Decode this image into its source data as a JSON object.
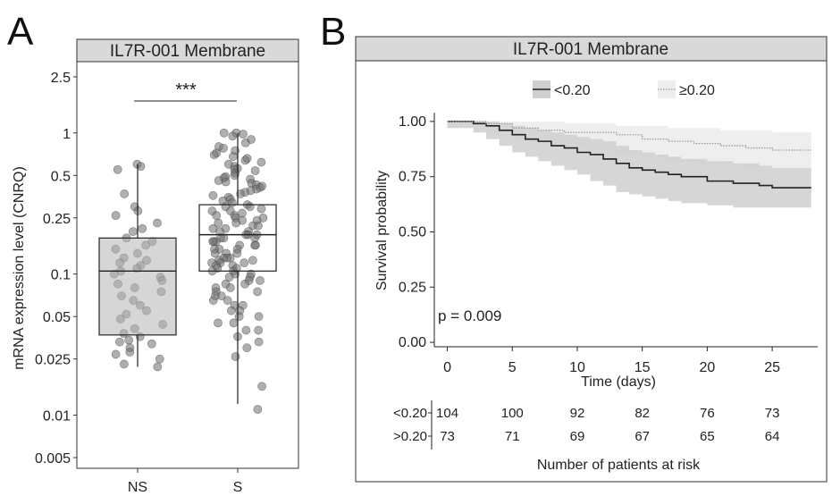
{
  "chart_data": [
    {
      "panel": "A",
      "type": "box",
      "title": "IL7R-001 Membrane",
      "ylabel": "mRNA expression level (CNRQ)",
      "yscale": "log",
      "ylim": [
        0.0042,
        3.2
      ],
      "yticks": [
        {
          "value": 2.5,
          "label": "2.5"
        },
        {
          "value": 1,
          "label": "1"
        },
        {
          "value": 0.5,
          "label": "0.5"
        },
        {
          "value": 0.25,
          "label": "0.25"
        },
        {
          "value": 0.1,
          "label": "0.1"
        },
        {
          "value": 0.05,
          "label": "0.05"
        },
        {
          "value": 0.025,
          "label": "0.025"
        },
        {
          "value": 0.01,
          "label": "0.01"
        },
        {
          "value": 0.005,
          "label": "0.005"
        }
      ],
      "categories": [
        "NS",
        "S"
      ],
      "significance": "***",
      "boxes": [
        {
          "category": "NS",
          "min": 0.022,
          "q1": 0.037,
          "median": 0.105,
          "q3": 0.18,
          "max": 0.6
        },
        {
          "category": "S",
          "min": 0.012,
          "q1": 0.105,
          "median": 0.19,
          "q3": 0.31,
          "max": 1.0
        }
      ],
      "points": [
        {
          "category": "NS",
          "values": [
            0.6,
            0.58,
            0.55,
            0.37,
            0.3,
            0.28,
            0.26,
            0.23,
            0.21,
            0.2,
            0.18,
            0.17,
            0.16,
            0.15,
            0.14,
            0.13,
            0.125,
            0.12,
            0.115,
            0.11,
            0.105,
            0.1,
            0.095,
            0.09,
            0.085,
            0.08,
            0.075,
            0.07,
            0.065,
            0.06,
            0.055,
            0.052,
            0.048,
            0.044,
            0.041,
            0.038,
            0.036,
            0.034,
            0.033,
            0.032,
            0.03,
            0.028,
            0.027,
            0.025,
            0.023,
            0.022
          ]
        },
        {
          "category": "S",
          "values": [
            1.0,
            1.0,
            0.98,
            0.95,
            0.9,
            0.85,
            0.8,
            0.78,
            0.75,
            0.72,
            0.7,
            0.68,
            0.66,
            0.64,
            0.62,
            0.6,
            0.58,
            0.56,
            0.55,
            0.54,
            0.52,
            0.5,
            0.49,
            0.48,
            0.47,
            0.46,
            0.45,
            0.44,
            0.43,
            0.42,
            0.41,
            0.4,
            0.39,
            0.38,
            0.37,
            0.36,
            0.35,
            0.34,
            0.33,
            0.32,
            0.31,
            0.3,
            0.3,
            0.29,
            0.28,
            0.28,
            0.27,
            0.26,
            0.26,
            0.25,
            0.25,
            0.24,
            0.24,
            0.23,
            0.23,
            0.22,
            0.22,
            0.21,
            0.21,
            0.2,
            0.2,
            0.19,
            0.19,
            0.19,
            0.18,
            0.18,
            0.18,
            0.17,
            0.17,
            0.17,
            0.16,
            0.16,
            0.16,
            0.15,
            0.15,
            0.15,
            0.14,
            0.14,
            0.14,
            0.13,
            0.13,
            0.13,
            0.125,
            0.125,
            0.12,
            0.12,
            0.12,
            0.115,
            0.115,
            0.11,
            0.11,
            0.105,
            0.105,
            0.1,
            0.1,
            0.095,
            0.095,
            0.09,
            0.09,
            0.085,
            0.085,
            0.08,
            0.08,
            0.075,
            0.075,
            0.07,
            0.07,
            0.065,
            0.065,
            0.06,
            0.06,
            0.055,
            0.055,
            0.05,
            0.05,
            0.045,
            0.045,
            0.04,
            0.04,
            0.036,
            0.033,
            0.03,
            0.026,
            0.016,
            0.011
          ]
        }
      ]
    },
    {
      "panel": "B",
      "type": "line",
      "subtype": "kaplan-meier",
      "title": "IL7R-001 Membrane",
      "xlabel": "Time (days)",
      "ylabel": "Survival probability",
      "xlim": [
        -1,
        28.5
      ],
      "ylim": [
        -0.02,
        1.04
      ],
      "xticks": [
        0,
        5,
        10,
        15,
        20,
        25
      ],
      "yticks": [
        {
          "value": 1.0,
          "label": "1.00"
        },
        {
          "value": 0.75,
          "label": "0.75"
        },
        {
          "value": 0.5,
          "label": "0.50"
        },
        {
          "value": 0.25,
          "label": "0.25"
        },
        {
          "value": 0.0,
          "label": "0.00"
        }
      ],
      "pvalue": "p = 0.009",
      "legend_position": "top",
      "series": [
        {
          "name": "<0.20",
          "line_style": "solid",
          "line_color": "#222222",
          "band_color": "#cfcfcf",
          "x": [
            0,
            2,
            3,
            4,
            5,
            6,
            7,
            8,
            9,
            10,
            11,
            12,
            13,
            14,
            15,
            16,
            17,
            18,
            20,
            22,
            24,
            25,
            28
          ],
          "y": [
            1.0,
            0.99,
            0.98,
            0.96,
            0.94,
            0.92,
            0.91,
            0.89,
            0.88,
            0.86,
            0.85,
            0.83,
            0.81,
            0.79,
            0.78,
            0.77,
            0.76,
            0.75,
            0.73,
            0.72,
            0.71,
            0.7,
            0.7
          ],
          "lower": [
            1.0,
            0.97,
            0.95,
            0.92,
            0.89,
            0.86,
            0.84,
            0.82,
            0.8,
            0.78,
            0.76,
            0.73,
            0.71,
            0.68,
            0.67,
            0.66,
            0.65,
            0.64,
            0.63,
            0.62,
            0.61,
            0.61,
            0.61
          ],
          "upper": [
            1.0,
            1.0,
            1.0,
            0.99,
            0.98,
            0.97,
            0.96,
            0.95,
            0.94,
            0.93,
            0.92,
            0.91,
            0.89,
            0.87,
            0.86,
            0.85,
            0.84,
            0.83,
            0.82,
            0.81,
            0.8,
            0.79,
            0.79
          ]
        },
        {
          "name": "≥0.20",
          "line_style": "dotted",
          "line_color": "#9a9a9a",
          "band_color": "#eeeeee",
          "x": [
            0,
            3,
            5,
            7,
            9,
            11,
            13,
            15,
            17,
            19,
            21,
            23,
            25,
            28
          ],
          "y": [
            1.0,
            0.99,
            0.97,
            0.96,
            0.95,
            0.95,
            0.94,
            0.92,
            0.91,
            0.9,
            0.89,
            0.88,
            0.87,
            0.87
          ],
          "lower": [
            1.0,
            0.97,
            0.94,
            0.92,
            0.9,
            0.89,
            0.87,
            0.85,
            0.83,
            0.82,
            0.81,
            0.8,
            0.79,
            0.79
          ],
          "upper": [
            1.0,
            1.0,
            1.0,
            1.0,
            0.99,
            0.99,
            0.98,
            0.98,
            0.97,
            0.97,
            0.96,
            0.96,
            0.95,
            0.95
          ]
        }
      ],
      "risk_table": {
        "title": "Number of patients at risk",
        "times": [
          0,
          5,
          10,
          15,
          20,
          25
        ],
        "rows": [
          {
            "label": "<0.20",
            "counts": [
              104,
              100,
              92,
              82,
              76,
              73
            ]
          },
          {
            "label": ">0.20",
            "counts": [
              73,
              71,
              69,
              67,
              65,
              64
            ]
          }
        ]
      }
    }
  ],
  "panel_letters": {
    "a": "A",
    "b": "B"
  }
}
